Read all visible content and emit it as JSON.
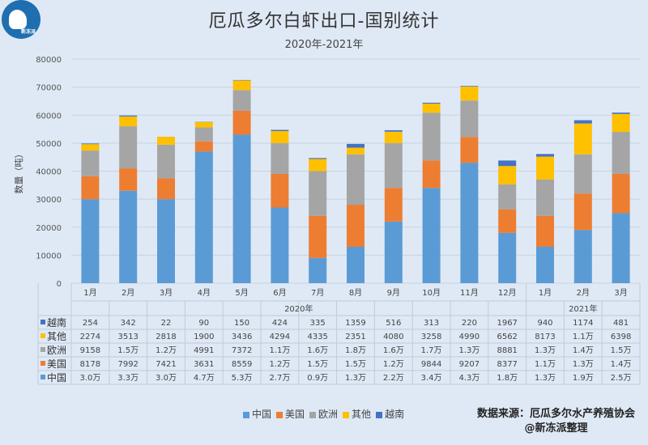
{
  "chart_data": {
    "type": "bar",
    "stacked": true,
    "title": "厄瓜多尔白虾出口-国别统计",
    "subtitle": "2020年-2021年",
    "ylabel": "数量（吨）",
    "ylim": [
      0,
      80000
    ],
    "yticks": [
      "0",
      "10000",
      "20000",
      "30000",
      "40000",
      "50000",
      "60000",
      "70000",
      "80000"
    ],
    "grid": true,
    "legend_position": "bottom",
    "categories": [
      "1月",
      "2月",
      "3月",
      "4月",
      "5月",
      "6月",
      "7月",
      "8月",
      "9月",
      "10月",
      "11月",
      "12月",
      "1月",
      "2月",
      "3月"
    ],
    "year_groups": [
      {
        "label": "2020年",
        "span": 12
      },
      {
        "label": "2021年",
        "span": 3
      }
    ],
    "series": [
      {
        "name": "中国",
        "color": "#5b9bd5",
        "values": [
          30000,
          33000,
          30000,
          47000,
          53000,
          27000,
          9000,
          13000,
          22000,
          34000,
          43000,
          18000,
          13000,
          19000,
          25000
        ],
        "labels": [
          "3.0万",
          "3.3万",
          "3.0万",
          "4.7万",
          "5.3万",
          "2.7万",
          "0.9万",
          "1.3万",
          "2.2万",
          "3.4万",
          "4.3万",
          "1.8万",
          "1.3万",
          "1.9万",
          "2.5万"
        ]
      },
      {
        "name": "美国",
        "color": "#ed7d31",
        "values": [
          8178,
          7992,
          7421,
          3631,
          8559,
          12000,
          15000,
          15000,
          12000,
          9844,
          9207,
          8377,
          11000,
          13000,
          14000
        ],
        "labels": [
          "8178",
          "7992",
          "7421",
          "3631",
          "8559",
          "1.2万",
          "1.5万",
          "1.5万",
          "1.2万",
          "9844",
          "9207",
          "8377",
          "1.1万",
          "1.3万",
          "1.4万"
        ]
      },
      {
        "name": "欧洲",
        "color": "#a5a5a5",
        "values": [
          9158,
          15000,
          12000,
          4991,
          7372,
          11000,
          16000,
          18000,
          16000,
          17000,
          13000,
          8881,
          13000,
          14000,
          15000
        ],
        "labels": [
          "9158",
          "1.5万",
          "1.2万",
          "4991",
          "7372",
          "1.1万",
          "1.6万",
          "1.8万",
          "1.6万",
          "1.7万",
          "1.3万",
          "8881",
          "1.3万",
          "1.4万",
          "1.5万"
        ]
      },
      {
        "name": "其他",
        "color": "#ffc000",
        "values": [
          2274,
          3513,
          2818,
          1900,
          3436,
          4294,
          4335,
          2351,
          4080,
          3258,
          4990,
          6562,
          8173,
          11000,
          6398
        ],
        "labels": [
          "2274",
          "3513",
          "2818",
          "1900",
          "3436",
          "4294",
          "4335",
          "2351",
          "4080",
          "3258",
          "4990",
          "6562",
          "8173",
          "1.1万",
          "6398"
        ]
      },
      {
        "name": "越南",
        "color": "#4472c4",
        "values": [
          254,
          342,
          22,
          90,
          150,
          424,
          335,
          1359,
          516,
          313,
          220,
          1967,
          940,
          1174,
          481
        ],
        "labels": [
          "254",
          "342",
          "22",
          "90",
          "150",
          "424",
          "335",
          "1359",
          "516",
          "313",
          "220",
          "1967",
          "940",
          "1174",
          "481"
        ]
      }
    ]
  },
  "logo_text": "新冻派",
  "source": {
    "line1": "数据来源：厄瓜多尔水产养殖协会",
    "line2": "@新冻派整理"
  }
}
